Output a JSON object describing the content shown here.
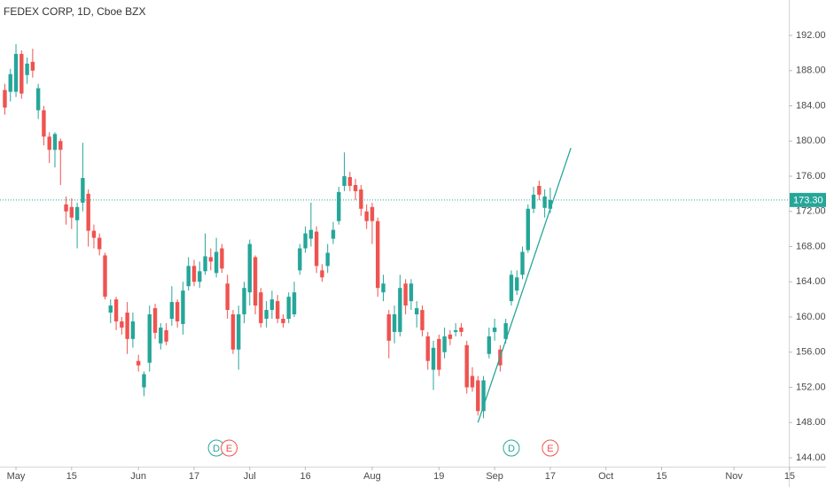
{
  "chart_data": {
    "type": "candlestick",
    "title": "FEDEX CORP, 1D, Cboe BZX",
    "up_color": "#26a69a",
    "down_color": "#ef5350",
    "x": [
      -2,
      -1,
      0,
      1,
      2,
      3,
      4,
      5,
      6,
      7,
      8,
      9,
      10,
      11,
      12,
      13,
      14,
      15,
      16,
      17,
      18,
      19,
      20,
      21,
      22,
      23,
      24,
      25,
      26,
      27,
      28,
      29,
      30,
      31,
      32,
      33,
      34,
      35,
      36,
      37,
      38,
      39,
      40,
      41,
      42,
      43,
      44,
      45,
      46,
      47,
      48,
      49,
      50,
      51,
      52,
      53,
      54,
      55,
      56,
      57,
      58,
      59,
      60,
      61,
      62,
      63,
      64,
      65,
      66,
      67,
      68,
      69,
      70,
      71,
      72,
      73,
      74,
      75,
      76,
      77,
      78,
      79,
      80,
      81,
      82,
      83,
      84,
      85,
      86,
      87,
      88,
      89,
      90,
      91,
      92,
      93,
      94,
      95,
      96
    ],
    "open": [
      185.8,
      185.6,
      185.6,
      189.9,
      187.5,
      189.0,
      183.5,
      183.5,
      180.5,
      179.0,
      180.0,
      172.8,
      172.5,
      171.0,
      173.0,
      174.0,
      169.8,
      169.0,
      167.0,
      160.5,
      162.0,
      159.5,
      160.5,
      157.5,
      155.0,
      152.0,
      154.8,
      161.0,
      157.0,
      158.5,
      159.8,
      161.7,
      159.2,
      163.5,
      165.8,
      164.0,
      165.2,
      166.8,
      165.0,
      167.8,
      163.8,
      160.3,
      156.3,
      160.3,
      162.8,
      166.8,
      162.8,
      159.8,
      160.8,
      161.8,
      159.8,
      159.8,
      160.3,
      165.3,
      167.8,
      168.9,
      169.7,
      165.3,
      165.8,
      168.9,
      170.9,
      174.9,
      175.9,
      175.0,
      174.5,
      172.0,
      172.5,
      170.9,
      162.8,
      160.3,
      158.3,
      158.3,
      163.8,
      161.8,
      160.3,
      160.8,
      157.8,
      154.0,
      157.5,
      156.0,
      158.0,
      158.3,
      158.8,
      156.8,
      153.3,
      152.8,
      149.3,
      155.8,
      158.3,
      156.3,
      157.5,
      161.8,
      163.0,
      164.8,
      167.6,
      172.3,
      174.9,
      172.4,
      172.3
    ],
    "high": [
      186.5,
      188.2,
      191.0,
      190.3,
      189.5,
      190.5,
      186.5,
      184.0,
      181.0,
      181.0,
      180.3,
      173.7,
      173.5,
      173.0,
      179.8,
      174.5,
      170.5,
      169.5,
      167.3,
      162.0,
      162.3,
      160.0,
      161.7,
      160.5,
      155.7,
      153.8,
      161.3,
      161.5,
      159.3,
      159.3,
      163.5,
      162.0,
      164.0,
      166.8,
      166.5,
      166.3,
      169.5,
      167.8,
      169.0,
      168.3,
      164.8,
      160.8,
      161.3,
      164.0,
      168.8,
      167.0,
      163.3,
      161.8,
      163.0,
      162.5,
      160.3,
      162.8,
      164.0,
      168.3,
      170.3,
      173.0,
      170.3,
      166.0,
      168.3,
      170.8,
      174.8,
      178.7,
      176.5,
      175.7,
      175.0,
      172.8,
      173.0,
      171.3,
      164.8,
      160.8,
      161.3,
      164.8,
      164.3,
      164.3,
      161.8,
      161.3,
      158.3,
      157.3,
      158.0,
      158.8,
      158.5,
      159.3,
      159.3,
      157.3,
      154.3,
      153.3,
      153.3,
      158.8,
      159.8,
      156.8,
      159.8,
      165.3,
      165.3,
      168.0,
      172.8,
      174.8,
      175.5,
      174.5,
      174.7
    ],
    "low": [
      183.0,
      184.5,
      185.0,
      184.8,
      186.5,
      187.2,
      182.5,
      179.5,
      177.5,
      177.0,
      175.0,
      170.5,
      170.0,
      167.8,
      172.0,
      168.0,
      167.8,
      167.0,
      162.0,
      159.3,
      158.5,
      158.0,
      155.8,
      156.5,
      153.8,
      151.0,
      153.8,
      157.5,
      156.3,
      156.8,
      159.0,
      158.8,
      158.0,
      163.0,
      163.5,
      163.3,
      164.8,
      165.3,
      164.5,
      165.0,
      159.8,
      155.8,
      154.0,
      159.3,
      161.3,
      160.3,
      158.8,
      158.8,
      159.8,
      159.3,
      158.8,
      159.3,
      160.0,
      164.8,
      167.3,
      168.0,
      165.0,
      164.0,
      165.0,
      168.3,
      170.5,
      174.3,
      174.3,
      173.3,
      171.5,
      170.0,
      168.3,
      162.3,
      161.8,
      155.3,
      157.0,
      157.8,
      160.3,
      160.8,
      158.8,
      157.8,
      154.0,
      151.7,
      153.3,
      155.3,
      156.8,
      157.8,
      157.8,
      151.3,
      151.5,
      148.8,
      148.5,
      155.3,
      157.3,
      153.8,
      157.0,
      161.3,
      162.5,
      164.3,
      167.3,
      171.8,
      173.3,
      171.3,
      171.8
    ],
    "close": [
      183.8,
      187.6,
      189.9,
      185.4,
      188.8,
      188.0,
      186.0,
      180.5,
      179.0,
      180.8,
      179.0,
      172.0,
      171.3,
      172.5,
      175.8,
      169.8,
      169.0,
      167.7,
      162.3,
      161.3,
      159.5,
      158.8,
      157.5,
      159.5,
      154.5,
      153.5,
      160.3,
      158.2,
      158.8,
      157.2,
      161.7,
      159.5,
      163.0,
      165.8,
      164.0,
      165.2,
      166.9,
      166.3,
      167.4,
      165.5,
      160.8,
      156.3,
      160.3,
      163.3,
      168.3,
      161.3,
      159.3,
      160.8,
      162.0,
      159.8,
      159.3,
      162.3,
      162.8,
      167.8,
      169.5,
      169.9,
      165.8,
      164.5,
      167.3,
      169.9,
      174.2,
      176.0,
      174.9,
      174.3,
      172.3,
      170.9,
      170.9,
      163.3,
      163.8,
      157.3,
      160.3,
      163.3,
      161.3,
      163.8,
      161.0,
      158.5,
      155.0,
      156.5,
      154.0,
      157.8,
      157.5,
      158.5,
      158.3,
      152.0,
      152.0,
      149.3,
      152.8,
      157.8,
      158.8,
      154.5,
      159.3,
      164.8,
      164.5,
      167.4,
      172.3,
      173.9,
      173.9,
      173.7,
      173.3
    ],
    "xlim": [
      -2.87,
      138.85
    ],
    "xticks": [
      {
        "value": 0,
        "label": "May"
      },
      {
        "value": 10,
        "label": "15"
      },
      {
        "value": 22,
        "label": "Jun"
      },
      {
        "value": 32,
        "label": "17"
      },
      {
        "value": 42,
        "label": "Jul"
      },
      {
        "value": 52,
        "label": "16"
      },
      {
        "value": 64,
        "label": "Aug"
      },
      {
        "value": 76,
        "label": "19"
      },
      {
        "value": 86,
        "label": "Sep"
      },
      {
        "value": 96,
        "label": "17"
      },
      {
        "value": 106,
        "label": "Oct"
      },
      {
        "value": 116,
        "label": "15"
      },
      {
        "value": 129,
        "label": "Nov"
      },
      {
        "value": 139,
        "label": "15"
      }
    ],
    "ylim": [
      142.99,
      196.03
    ],
    "yticks": [
      {
        "value": 144,
        "label": "144.00"
      },
      {
        "value": 148,
        "label": "148.00"
      },
      {
        "value": 152,
        "label": "152.00"
      },
      {
        "value": 156,
        "label": "156.00"
      },
      {
        "value": 160,
        "label": "160.00"
      },
      {
        "value": 164,
        "label": "164.00"
      },
      {
        "value": 168,
        "label": "168.00"
      },
      {
        "value": 172,
        "label": "172.00"
      },
      {
        "value": 176,
        "label": "176.00"
      },
      {
        "value": 180,
        "label": "180.00"
      },
      {
        "value": 184,
        "label": "184.00"
      },
      {
        "value": 188,
        "label": "188.00"
      },
      {
        "value": 192,
        "label": "192.00"
      }
    ],
    "grid": false,
    "last_price": {
      "value": 173.3,
      "label": "173.30",
      "color": "#26a69a"
    },
    "trendline": {
      "x": [
        83,
        99.7
      ],
      "y": [
        148.0,
        179.2
      ],
      "color": "#26a69a"
    },
    "events": [
      {
        "x": 36,
        "label": "D",
        "color": "#26a69a"
      },
      {
        "x": 38.3,
        "label": "E",
        "color": "#ef5350"
      },
      {
        "x": 89,
        "label": "D",
        "color": "#26a69a"
      },
      {
        "x": 96,
        "label": "E",
        "color": "#ef5350"
      }
    ]
  }
}
